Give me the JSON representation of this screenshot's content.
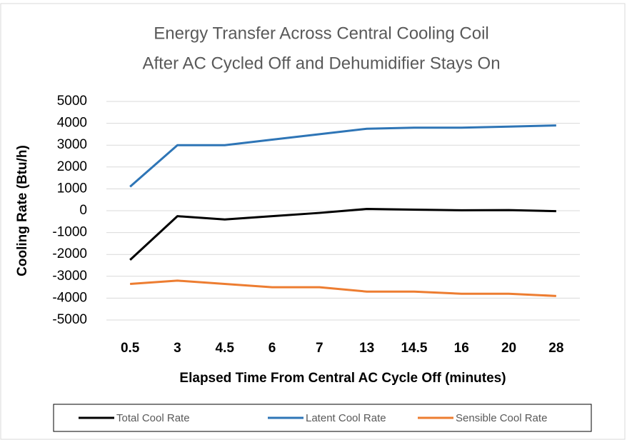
{
  "chart_data": {
    "type": "line",
    "title": [
      "Energy Transfer Across Central Cooling Coil",
      "After AC Cycled Off and Dehumidifier  Stays On"
    ],
    "x_label": "Elapsed Time From Central AC Cycle Off (minutes)",
    "y_label": "Cooling Rate (Btu/h)",
    "categories": [
      "0.5",
      "3",
      "4.5",
      "6",
      "7",
      "13",
      "14.5",
      "16",
      "20",
      "28"
    ],
    "series": [
      {
        "name": "Total Cool Rate",
        "color": "#000000",
        "values": [
          -2250,
          -250,
          -400,
          -250,
          -100,
          80,
          50,
          20,
          30,
          -20
        ]
      },
      {
        "name": "Latent Cool Rate",
        "color": "#2e75b6",
        "values": [
          1100,
          3000,
          3000,
          3250,
          3500,
          3750,
          3800,
          3800,
          3850,
          3900
        ]
      },
      {
        "name": "Sensible Cool Rate",
        "color": "#ed7d31",
        "values": [
          -3350,
          -3200,
          -3350,
          -3500,
          -3500,
          -3700,
          -3700,
          -3800,
          -3800,
          -3900
        ]
      }
    ],
    "ylim": [
      -5000,
      5000
    ],
    "yticks": [
      -5000,
      -4000,
      -3000,
      -2000,
      -1000,
      0,
      1000,
      2000,
      3000,
      4000,
      5000
    ],
    "grid": true,
    "legend": "bottom"
  }
}
